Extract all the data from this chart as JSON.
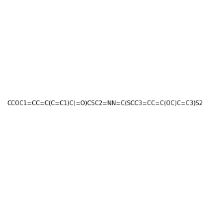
{
  "smiles": "CCOC1=CC=C(C=C1)C(=O)CSC2=NN=C(SCC3=CC=C(OC)C=C3)S2",
  "image_size": 300,
  "background_color": "#e8e8e8",
  "atom_colors": {
    "N": "#0000ff",
    "O": "#ff0000",
    "S": "#cccc00"
  },
  "title": ""
}
